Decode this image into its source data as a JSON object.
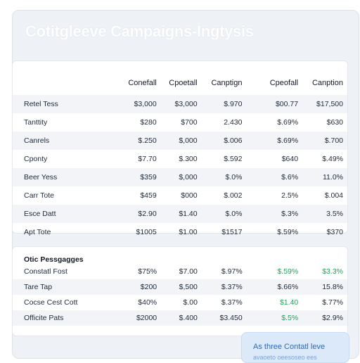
{
  "header": {
    "title": "Cotitgleeve Campaigns-Ingtysis"
  },
  "main_table": {
    "columns": [
      "Conefall",
      "Cpoetall",
      "Canptign",
      "Cpeofall",
      "Canption"
    ],
    "rows": [
      {
        "label": "Retel Tess",
        "values": [
          "$3,000",
          "$3,000",
          "$.970",
          "$00.77",
          "$17,500"
        ]
      },
      {
        "label": "Tanttity",
        "values": [
          "$280",
          "$700",
          "2.430",
          "$.69%",
          "$630"
        ]
      },
      {
        "label": "Canrels",
        "values": [
          "$.250",
          "$,000",
          "$.006",
          "$.69%",
          "$.700"
        ]
      },
      {
        "label": "Cponty",
        "values": [
          "$7.70",
          "$.300",
          "$.592",
          "$640",
          "$.49%"
        ]
      },
      {
        "label": "Beer Yess",
        "values": [
          "$359",
          "$,000",
          "$.0%",
          "$.6%",
          "11.0%"
        ]
      },
      {
        "label": "Carr Tote",
        "values": [
          "$459",
          "$000",
          "$.002",
          "2.5%",
          "$.004"
        ]
      },
      {
        "label": "Esce Datt",
        "values": [
          "$2.90",
          "$1.40",
          "$.0%",
          "$.3%",
          "3.5%"
        ]
      },
      {
        "label": "Apt Tote",
        "values": [
          "$1005",
          "$1.00",
          "$1517",
          "$.59%",
          "$370"
        ]
      }
    ]
  },
  "secondary_table": {
    "title": "Otic Pessgagges",
    "rows": [
      {
        "label": "Constatl Fost",
        "values": [
          "$75%",
          "$7.00",
          "$.97%",
          "$.59%",
          "$3.3%"
        ],
        "green": [
          false,
          false,
          false,
          true,
          true
        ]
      },
      {
        "label": "Tare Tap",
        "values": [
          "$200",
          "$,500",
          "$.37%",
          "$.66%",
          "15.8%"
        ],
        "green": [
          false,
          false,
          false,
          false,
          false
        ]
      },
      {
        "label": "Cocse Cest Cott",
        "values": [
          "$40%",
          "$.00",
          "$.37%",
          "$1.40",
          "$.77%"
        ],
        "green": [
          false,
          false,
          false,
          true,
          false
        ]
      },
      {
        "label": "Officite Pats",
        "values": [
          "$2000",
          "$.400",
          "$3.450",
          "$.5%",
          "$2.9%"
        ],
        "green": [
          false,
          false,
          false,
          true,
          false
        ]
      }
    ]
  },
  "toast": {
    "message": "As three Contatl leve",
    "sub": "avaoeto oeesoseo ees"
  },
  "colors": {
    "accent_green": "#22a35a",
    "toast_bg": "#dbe9f9",
    "toast_text": "#2c6ab8",
    "row_shade": "#f2f4f8"
  }
}
